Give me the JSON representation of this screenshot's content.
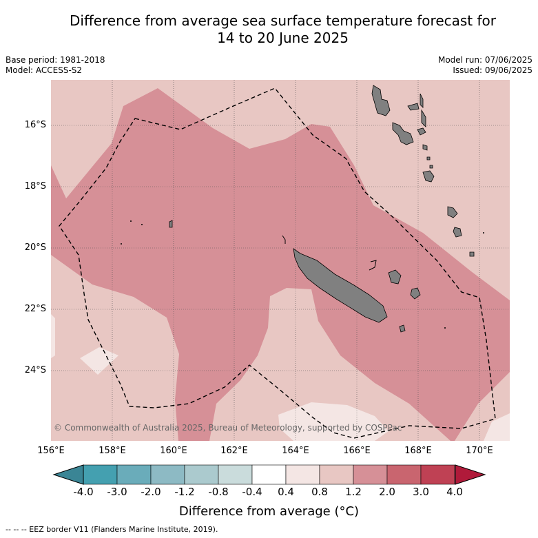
{
  "title": {
    "line1": "Difference from average sea surface temperature forecast for",
    "line2": "14 to 20 June 2025"
  },
  "meta": {
    "base_period": "Base period: 1981-2018",
    "model": "Model: ACCESS-S2",
    "model_run": "Model run: 07/06/2025",
    "issued": "Issued: 09/06/2025"
  },
  "axes": {
    "lat_labels": [
      "16°S",
      "18°S",
      "20°S",
      "22°S",
      "24°S"
    ],
    "lon_labels": [
      "156°E",
      "158°E",
      "160°E",
      "162°E",
      "164°E",
      "166°E",
      "168°E",
      "170°E"
    ]
  },
  "copyright": "© Commonwealth of Australia 2025, Bureau of Meteorology, supported by COSPPac",
  "colorbar": {
    "label": "Difference from average (°C)",
    "ticks": [
      "-4.0",
      "-3.0",
      "-2.0",
      "-1.2",
      "-0.8",
      "-0.4",
      "0.4",
      "0.8",
      "1.2",
      "2.0",
      "3.0",
      "4.0"
    ],
    "colors": [
      "#44a0b0",
      "#6aacba",
      "#8dbac4",
      "#abcace",
      "#cadcdc",
      "#ffffff",
      "#f4e6e4",
      "#e8c7c3",
      "#d69097",
      "#c9656f",
      "#bf4154"
    ],
    "low_extend_color": "#3a8595",
    "high_extend_color": "#b01a3a"
  },
  "eez_note": "-- -- -- EEZ border V11 (Flanders Marine Institute, 2019)."
}
